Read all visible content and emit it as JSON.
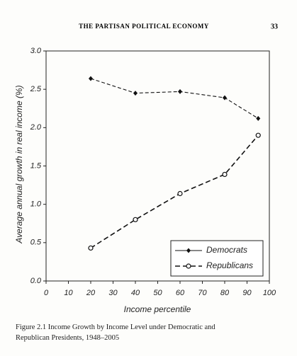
{
  "header": {
    "running_title": "THE PARTISAN POLITICAL ECONOMY",
    "page_number": "33"
  },
  "chart_data": {
    "type": "line",
    "x": [
      20,
      40,
      60,
      80,
      95
    ],
    "series": [
      {
        "name": "Democrats",
        "color": "#111111",
        "marker": "diamond",
        "values": [
          2.64,
          2.45,
          2.47,
          2.39,
          2.12
        ]
      },
      {
        "name": "Republicans",
        "color": "#111111",
        "marker": "circle-open",
        "values": [
          0.43,
          0.8,
          1.14,
          1.39,
          1.9
        ]
      }
    ],
    "xlabel": "Income percentile",
    "ylabel": "Average annual growth in real income (%)",
    "xlim": [
      0,
      100
    ],
    "xticks": [
      0,
      10,
      20,
      30,
      40,
      50,
      60,
      70,
      80,
      90,
      100
    ],
    "ylim": [
      0,
      3
    ],
    "yticks": [
      {
        "value": 0,
        "label": "0.0"
      },
      0.5,
      {
        "value": 1,
        "label": "1.0"
      },
      1.5,
      {
        "value": 2,
        "label": "2.0"
      },
      2.5,
      {
        "value": 3,
        "label": "3.0"
      }
    ],
    "grid": false,
    "legend": "lower right"
  },
  "caption": "Figure 2.1 Income Growth by Income Level under Democratic and Republican Presidents, 1948–2005"
}
